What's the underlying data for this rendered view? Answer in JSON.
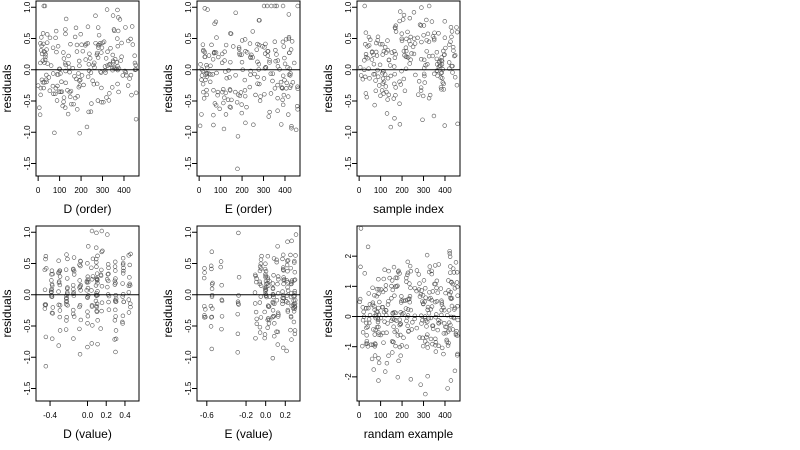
{
  "chart_data": [
    {
      "type": "scatter",
      "xlabel": "D (order)",
      "ylabel": "residuals",
      "xlim": [
        -10,
        470
      ],
      "ylim": [
        -1.7,
        1.1
      ],
      "x_ticks": [
        0,
        100,
        200,
        300,
        400
      ],
      "y_ticks": [
        1.0,
        0.5,
        0.0,
        -0.5,
        -1.0,
        -1.5
      ],
      "y_tick_labels": [
        "1.0",
        "0.5",
        "0.0",
        "-0.5",
        "-1.0",
        "-1.5"
      ],
      "reference_line_y": 0,
      "points_approximate": true,
      "n_points": 210,
      "seed": 11,
      "y_mean": 0.05,
      "y_sd": 0.42
    },
    {
      "type": "scatter",
      "xlabel": "E (order)",
      "ylabel": "residuals",
      "xlim": [
        -10,
        470
      ],
      "ylim": [
        -1.7,
        1.1
      ],
      "x_ticks": [
        0,
        100,
        200,
        300,
        400
      ],
      "y_ticks": [
        1.0,
        0.5,
        0.0,
        -0.5,
        -1.0,
        -1.5
      ],
      "y_tick_labels": [
        "1.0",
        "0.5",
        "0.0",
        "-0.5",
        "-1.0",
        "-1.5"
      ],
      "reference_line_y": 0,
      "points_approximate": true,
      "n_points": 210,
      "seed": 23,
      "y_mean": 0.05,
      "y_sd": 0.45
    },
    {
      "type": "scatter",
      "xlabel": "sample index",
      "ylabel": "residuals",
      "xlim": [
        -10,
        470
      ],
      "ylim": [
        -1.7,
        1.1
      ],
      "x_ticks": [
        0,
        100,
        200,
        300,
        400
      ],
      "y_ticks": [
        1.0,
        0.5,
        0.0,
        -0.5,
        -1.0,
        -1.5
      ],
      "y_tick_labels": [
        "1.0",
        "0.5",
        "0.0",
        "-0.5",
        "-1.0",
        "-1.5"
      ],
      "reference_line_y": 0,
      "points_approximate": true,
      "n_points": 210,
      "seed": 37,
      "y_mean": 0.08,
      "y_sd": 0.4
    },
    {
      "type": "scatter",
      "xlabel": "D (value)",
      "ylabel": "residuals",
      "xlim": [
        -0.55,
        0.55
      ],
      "ylim": [
        -1.7,
        1.1
      ],
      "x_ticks": [
        -0.4,
        0.0,
        0.2,
        0.4
      ],
      "x_tick_labels": [
        "-0.4",
        "0.0",
        "0.2",
        "0.4"
      ],
      "y_ticks": [
        1.0,
        0.5,
        0.0,
        -0.5,
        -1.0,
        -1.5
      ],
      "y_tick_labels": [
        "1.0",
        "0.5",
        "0.0",
        "-0.5",
        "-1.0",
        "-1.5"
      ],
      "reference_line_y": 0,
      "points_approximate": true,
      "n_points": 210,
      "seed": 53,
      "y_mean": 0.05,
      "y_sd": 0.42
    },
    {
      "type": "scatter",
      "xlabel": "E (value)",
      "ylabel": "residuals",
      "xlim": [
        -0.7,
        0.35
      ],
      "ylim": [
        -1.7,
        1.1
      ],
      "x_ticks": [
        -0.6,
        -0.2,
        0.0,
        0.2
      ],
      "x_tick_labels": [
        "-0.6",
        "-0.2",
        "0.0",
        "0.2"
      ],
      "y_ticks": [
        1.0,
        0.5,
        0.0,
        -0.5,
        -1.0,
        -1.5
      ],
      "y_tick_labels": [
        "1.0",
        "0.5",
        "0.0",
        "-0.5",
        "-1.0",
        "-1.5"
      ],
      "reference_line_y": 0,
      "points_approximate": true,
      "n_points": 200,
      "seed": 71,
      "y_mean": 0.0,
      "y_sd": 0.42
    },
    {
      "type": "scatter",
      "xlabel": "randam example",
      "ylabel": "residuals",
      "xlim": [
        -10,
        470
      ],
      "ylim": [
        -2.8,
        3.0
      ],
      "x_ticks": [
        0,
        100,
        200,
        300,
        400
      ],
      "y_ticks": [
        2,
        1,
        0,
        -1,
        -2
      ],
      "y_tick_labels": [
        "2",
        "1",
        "0",
        "-1",
        "-2"
      ],
      "reference_line_y": 0,
      "points_approximate": true,
      "n_points": 320,
      "seed": 97,
      "y_mean": 0.0,
      "y_sd": 1.0
    }
  ]
}
